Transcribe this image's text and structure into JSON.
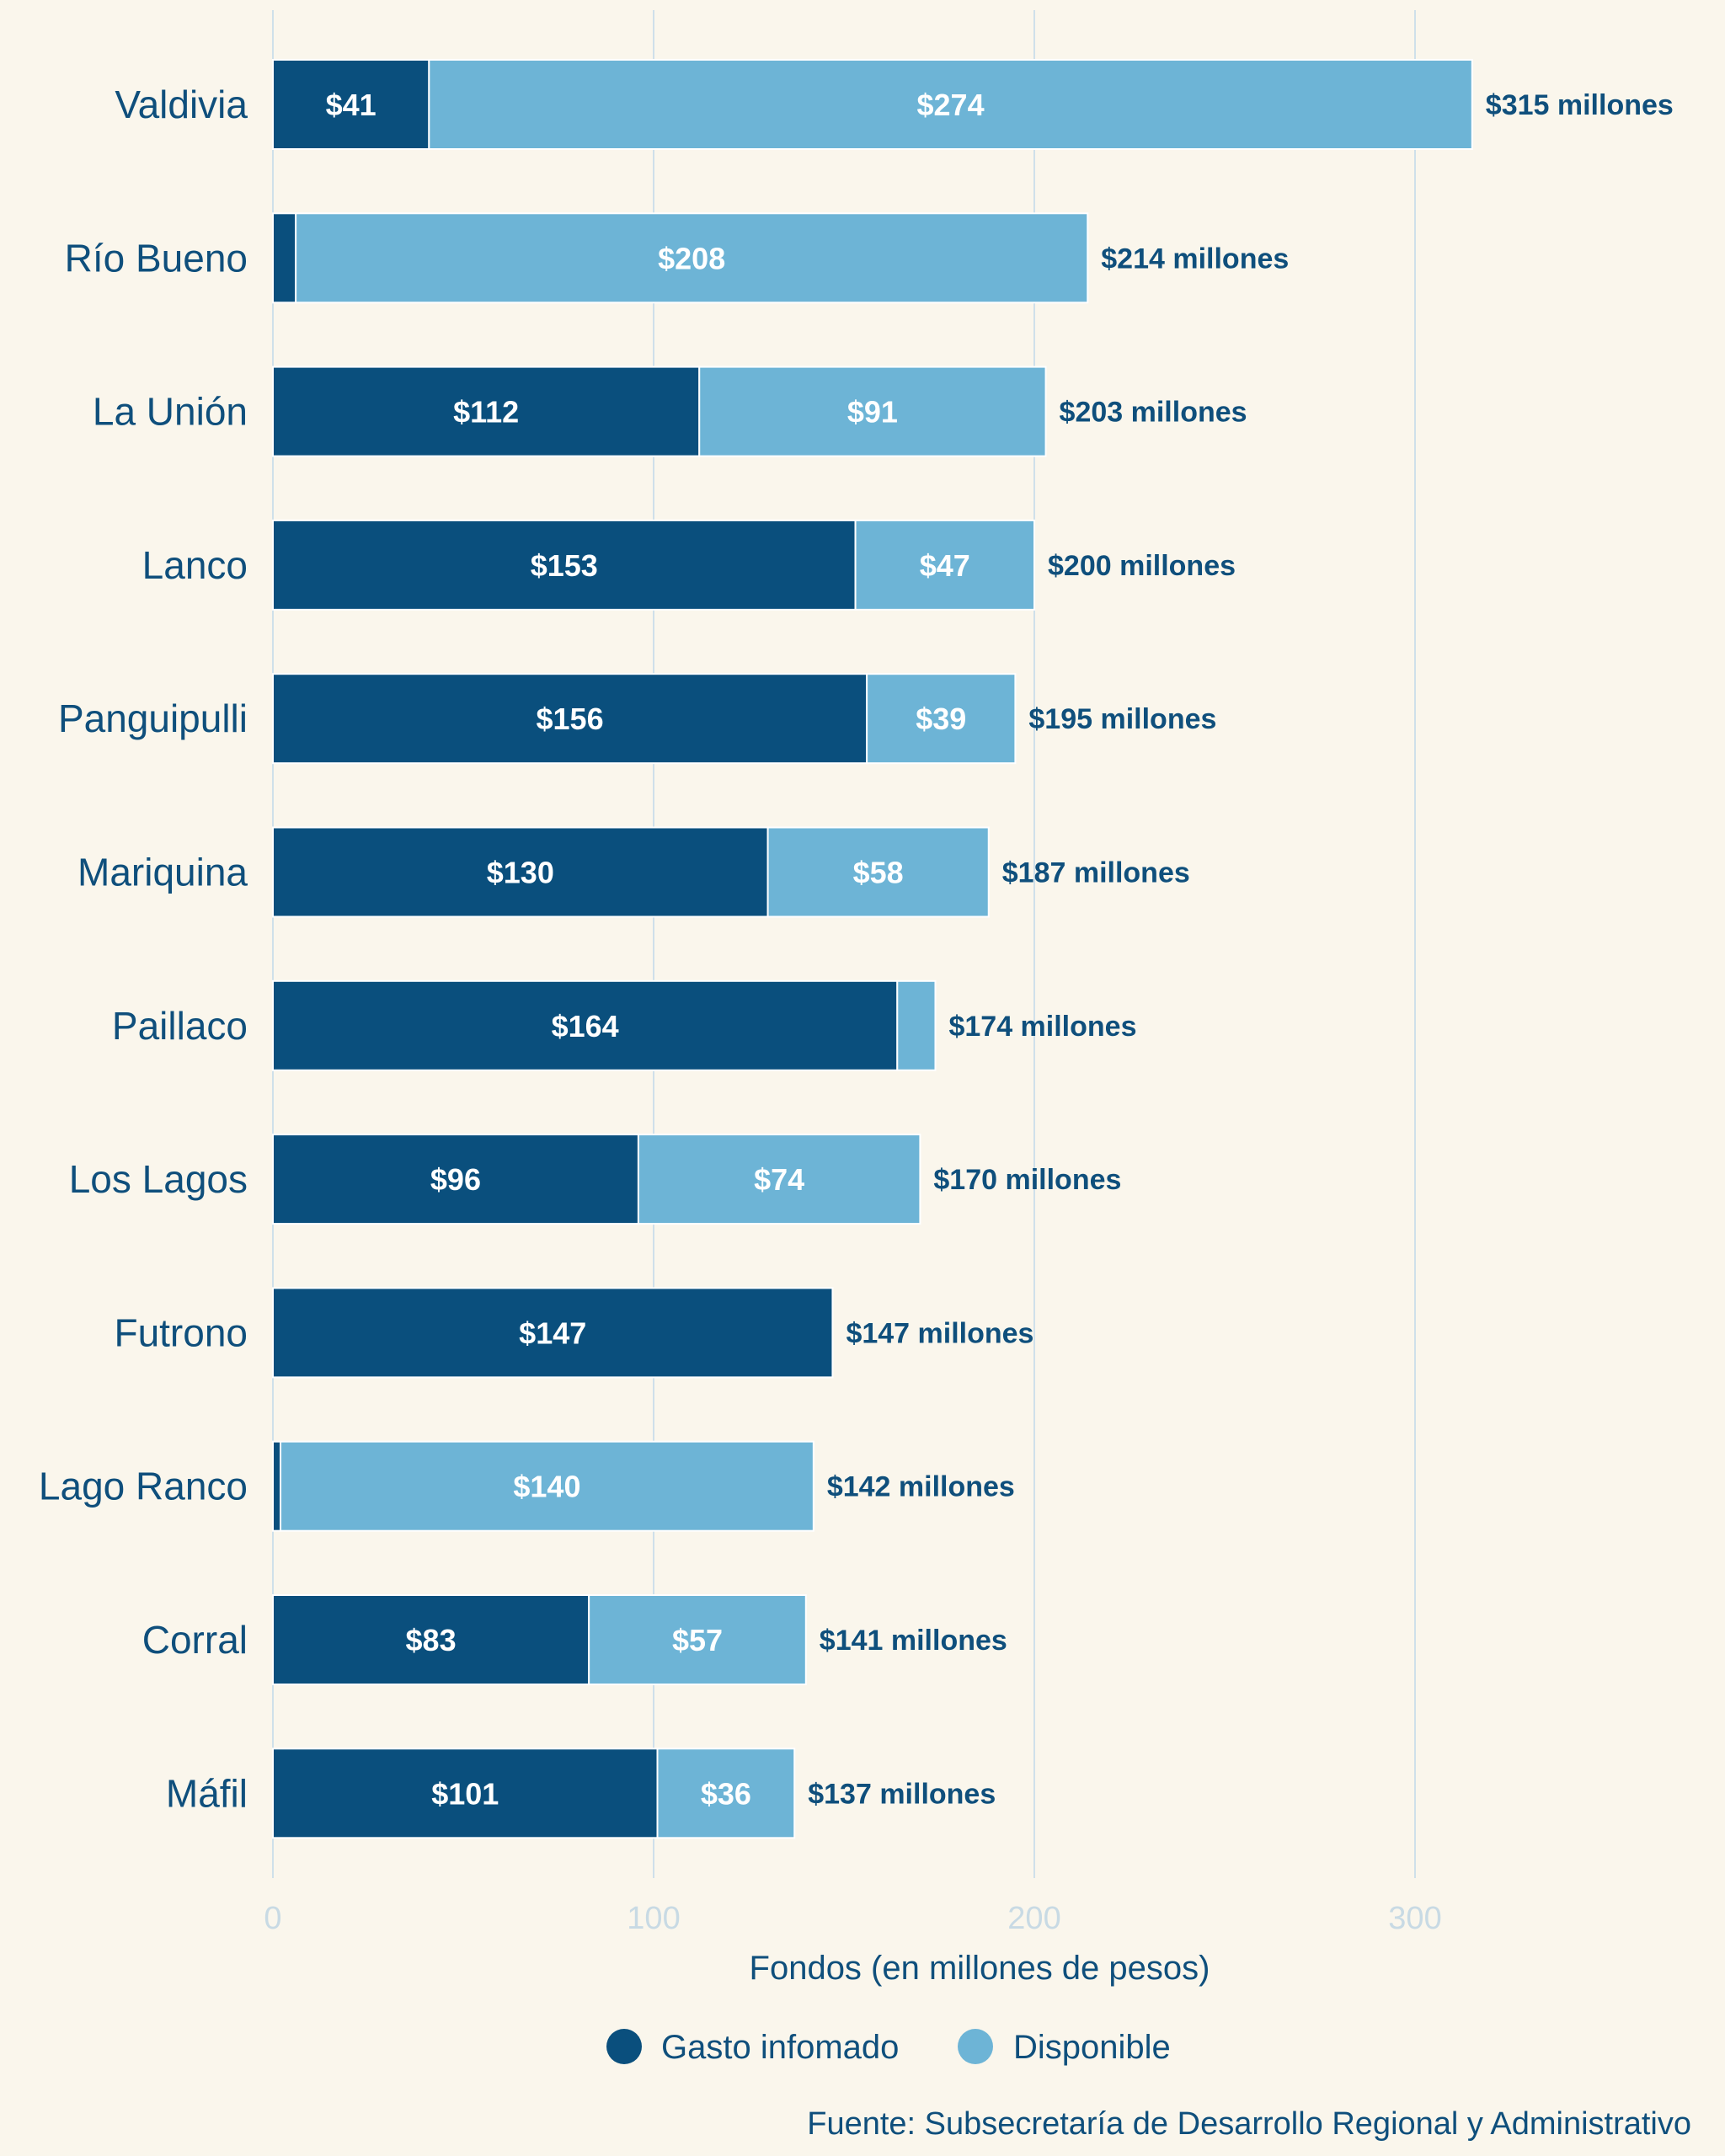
{
  "chart_data": {
    "type": "bar",
    "orientation": "horizontal",
    "stacked": true,
    "categories": [
      "Valdivia",
      "Río Bueno",
      "La Unión",
      "Lanco",
      "Panguipulli",
      "Mariquina",
      "Paillaco",
      "Los Lagos",
      "Futrono",
      "Lago Ranco",
      "Corral",
      "Máfil"
    ],
    "series": [
      {
        "name": "Gasto infomado",
        "color": "#0a4f7d",
        "values": [
          41,
          6,
          112,
          153,
          156,
          130,
          164,
          96,
          147,
          2,
          83,
          101
        ],
        "labels": [
          "$41",
          "",
          "$112",
          "$153",
          "$156",
          "$130",
          "$164",
          "$96",
          "$147",
          "",
          "$83",
          "$101"
        ]
      },
      {
        "name": "Disponible",
        "color": "#6db4d6",
        "values": [
          274,
          208,
          91,
          47,
          39,
          58,
          10,
          74,
          0,
          140,
          57,
          36
        ],
        "labels": [
          "$274",
          "$208",
          "$91",
          "$47",
          "$39",
          "$58",
          "",
          "$74",
          "",
          "$140",
          "$57",
          "$36"
        ]
      }
    ],
    "totals": [
      "$315 millones",
      "$214 millones",
      "$203 millones",
      "$200 millones",
      "$195 millones",
      "$187 millones",
      "$174 millones",
      "$170 millones",
      "$147 millones",
      "$142 millones",
      "$141 millones",
      "$137 millones"
    ],
    "xlim": [
      0,
      360
    ],
    "xticks": [
      0,
      100,
      200,
      300
    ],
    "xlabel": "Fondos (en millones de pesos)",
    "ylabel": "",
    "title": "",
    "grid": "vertical",
    "legend_position": "bottom",
    "source": "Fuente: Subsecretaría de Desarrollo Regional y Administrativo"
  },
  "colors": {
    "background": "#faf6ec",
    "dark_blue": "#0a4f7d",
    "light_blue": "#6db4d6",
    "grid": "#cfe0ea",
    "text": "#0f4f7c"
  }
}
